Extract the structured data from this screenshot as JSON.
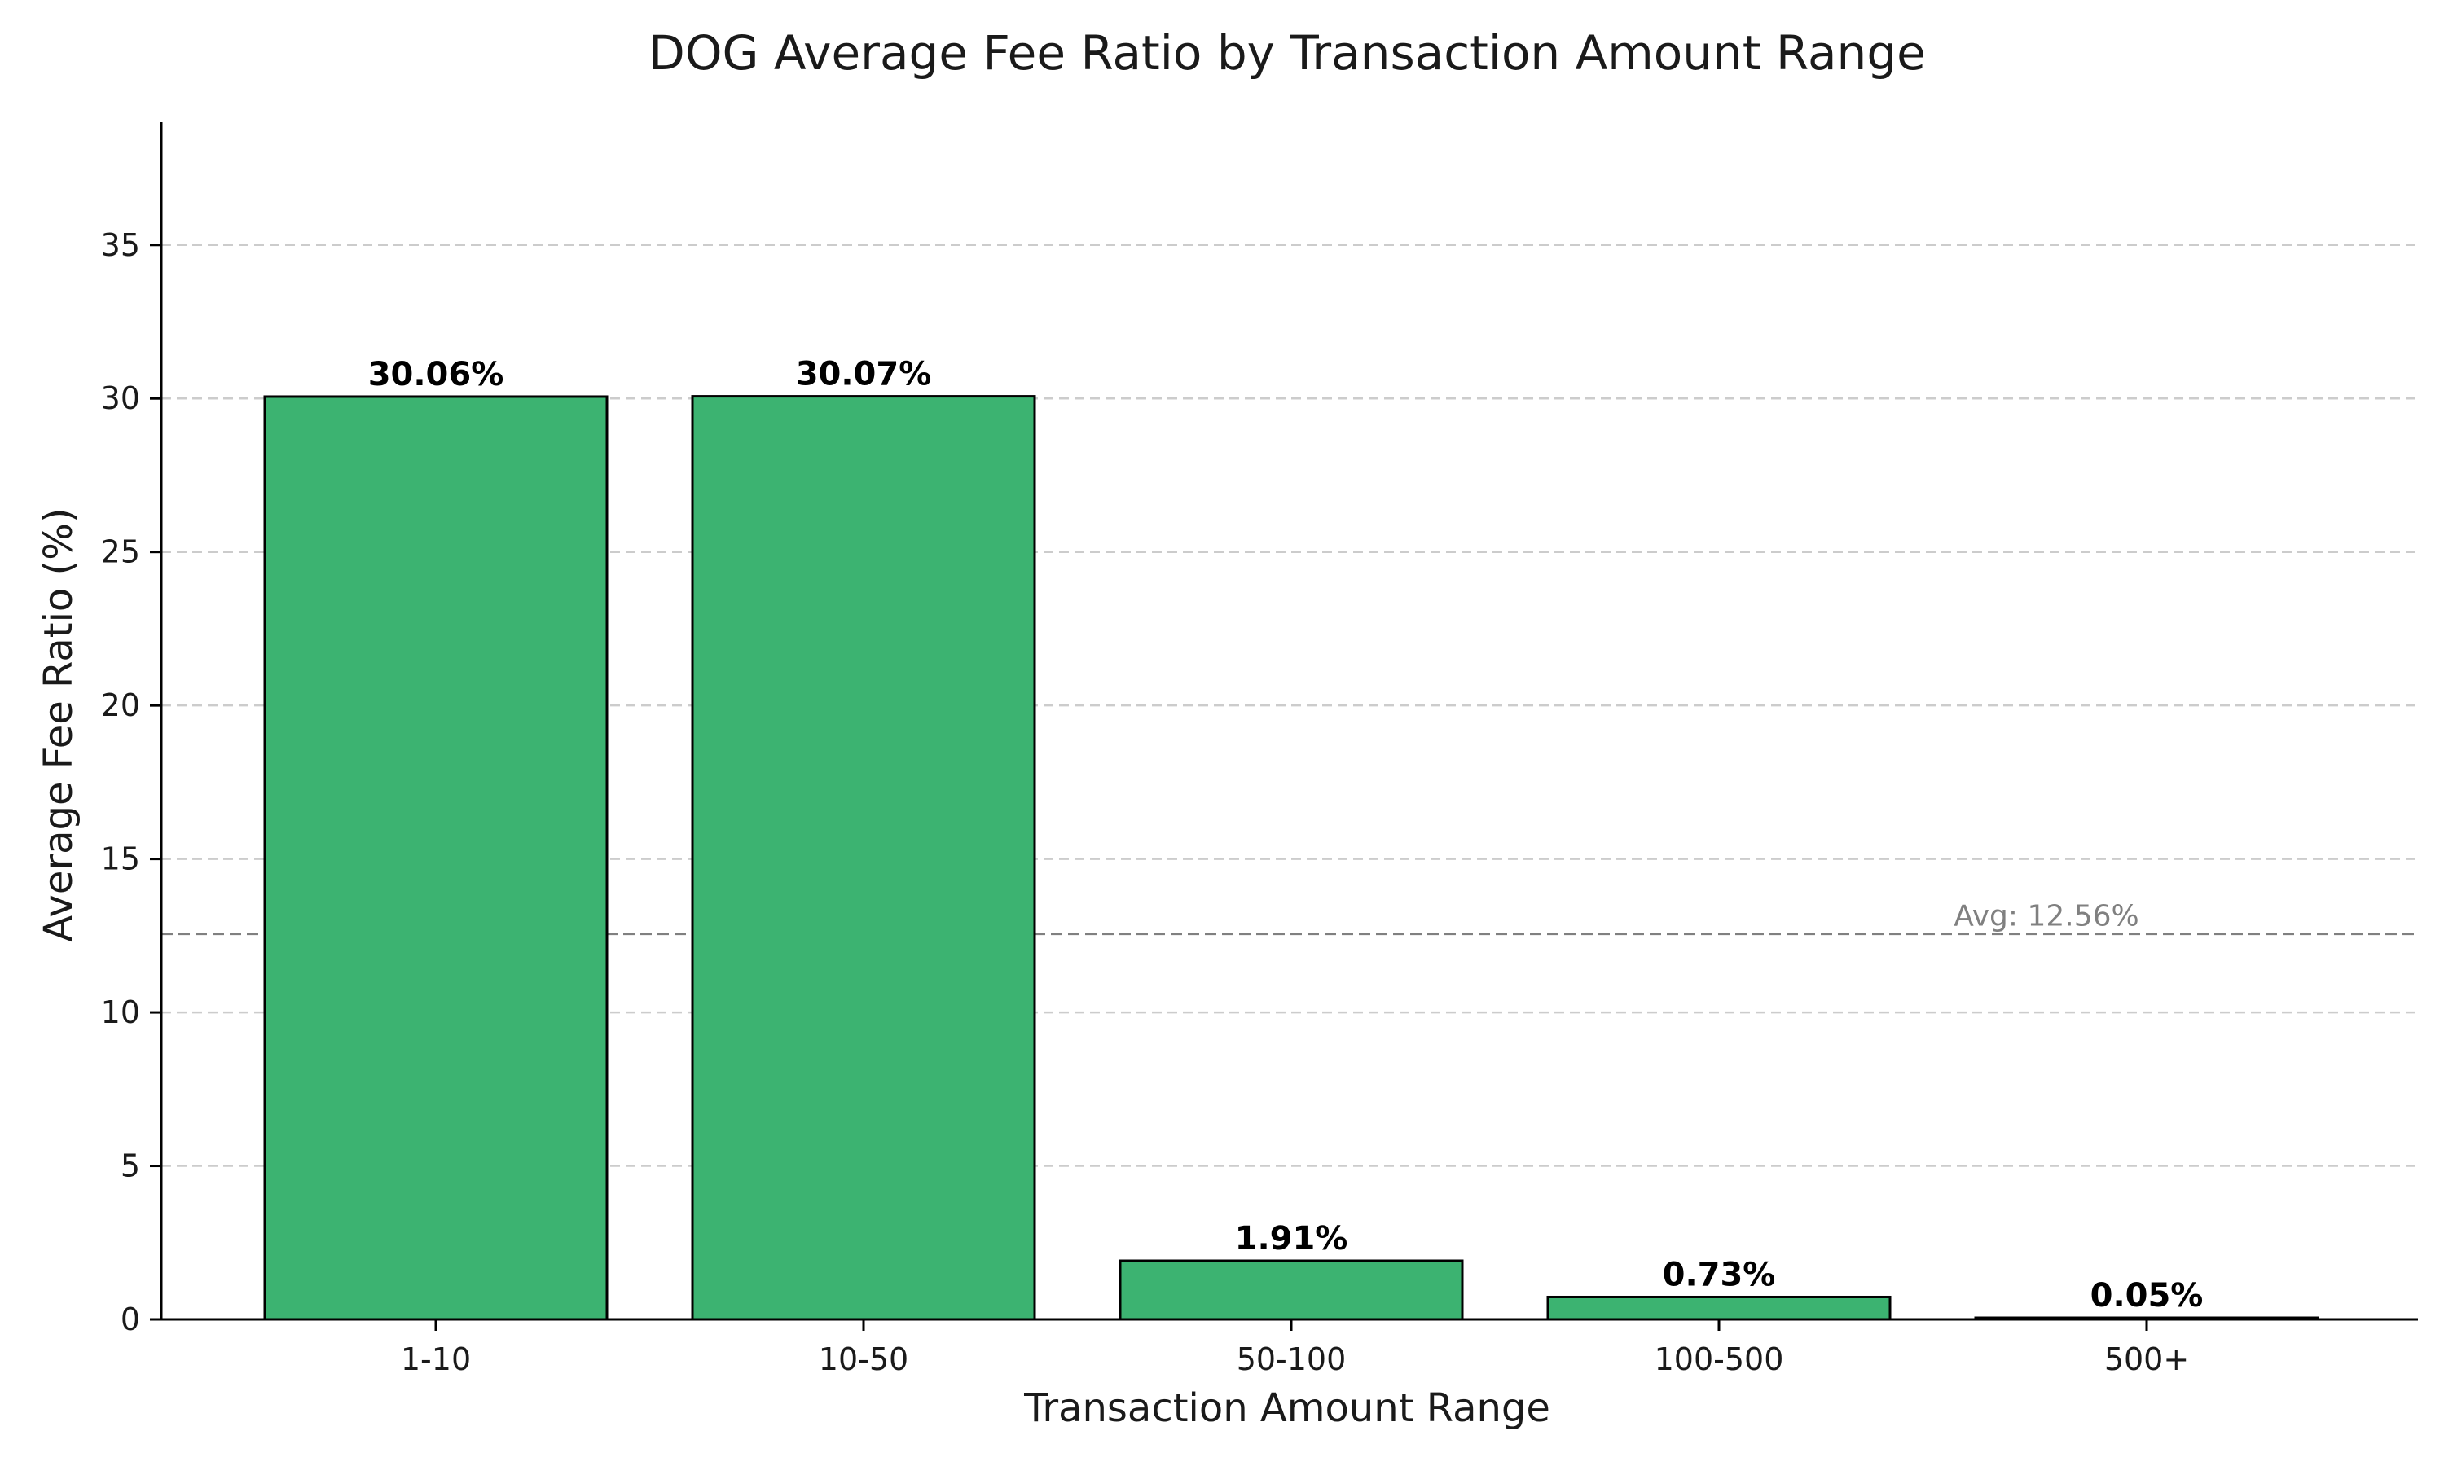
{
  "chart_data": {
    "type": "bar",
    "title": "DOG Average Fee Ratio by Transaction Amount Range",
    "xlabel": "Transaction Amount Range",
    "ylabel": "Average Fee Ratio (%)",
    "categories": [
      "1-10",
      "10-50",
      "50-100",
      "100-500",
      "500+"
    ],
    "values": [
      30.06,
      30.07,
      1.91,
      0.73,
      0.05
    ],
    "value_labels": [
      "30.06%",
      "30.07%",
      "1.91%",
      "0.73%",
      "0.05%"
    ],
    "ylim": [
      0,
      39
    ],
    "yticks": [
      0,
      5,
      10,
      15,
      20,
      25,
      30,
      35
    ],
    "grid": true,
    "average_line": {
      "value": 12.56,
      "label": "Avg: 12.56%"
    },
    "colors": {
      "bar": "#3cb371",
      "bar_edge": "#000000",
      "grid": "#cccccc",
      "average_line": "#808080"
    }
  }
}
